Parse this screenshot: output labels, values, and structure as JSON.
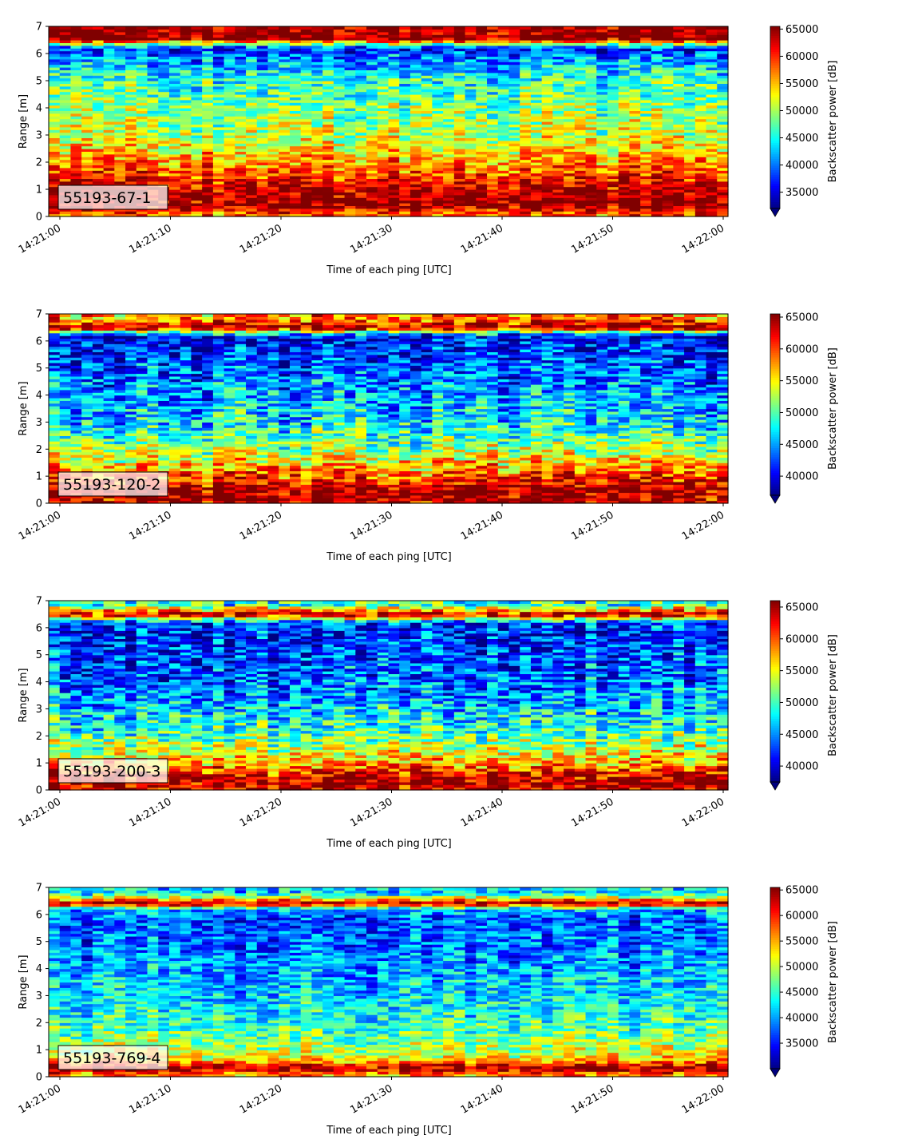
{
  "chart_data": [
    {
      "type": "heatmap",
      "panel_label": "55193-67-1",
      "xlabel": "Time of each ping [UTC]",
      "ylabel": "Range [m]",
      "xticks": [
        "14:21:00",
        "14:21:10",
        "14:21:20",
        "14:21:30",
        "14:21:40",
        "14:21:50",
        "14:22:00"
      ],
      "yticks": [
        0,
        1,
        2,
        3,
        4,
        5,
        6,
        7
      ],
      "ylim": [
        0,
        7
      ],
      "x_range": [
        "14:21:00",
        "14:22:00"
      ],
      "colorbar": {
        "label": "Backscatter power [dB]",
        "ticks": [
          35000,
          40000,
          45000,
          50000,
          55000,
          60000,
          65000
        ],
        "range": [
          32000,
          65500
        ],
        "extend": "min",
        "colormap": "jet"
      },
      "range_profile": [
        {
          "range": 0.1,
          "value": 58000
        },
        {
          "range": 0.4,
          "value": 65000
        },
        {
          "range": 1.0,
          "value": 64000
        },
        {
          "range": 1.6,
          "value": 59000
        },
        {
          "range": 2.2,
          "value": 55000
        },
        {
          "range": 3.0,
          "value": 51000
        },
        {
          "range": 4.0,
          "value": 49000
        },
        {
          "range": 5.0,
          "value": 46000
        },
        {
          "range": 5.8,
          "value": 41000
        },
        {
          "range": 6.2,
          "value": 37000
        },
        {
          "range": 6.55,
          "value": 65000
        },
        {
          "range": 7.0,
          "value": 65000
        }
      ]
    },
    {
      "type": "heatmap",
      "panel_label": "55193-120-2",
      "xlabel": "Time of each ping [UTC]",
      "ylabel": "Range [m]",
      "xticks": [
        "14:21:00",
        "14:21:10",
        "14:21:20",
        "14:21:30",
        "14:21:40",
        "14:21:50",
        "14:22:00"
      ],
      "yticks": [
        0,
        1,
        2,
        3,
        4,
        5,
        6,
        7
      ],
      "ylim": [
        0,
        7
      ],
      "x_range": [
        "14:21:00",
        "14:22:00"
      ],
      "colorbar": {
        "label": "Backscatter power [dB]",
        "ticks": [
          40000,
          45000,
          50000,
          55000,
          60000,
          65000
        ],
        "range": [
          37000,
          65500
        ],
        "extend": "min",
        "colormap": "jet"
      },
      "range_profile": [
        {
          "range": 0.1,
          "value": 64000
        },
        {
          "range": 0.5,
          "value": 65000
        },
        {
          "range": 1.0,
          "value": 60000
        },
        {
          "range": 1.6,
          "value": 55000
        },
        {
          "range": 2.2,
          "value": 51000
        },
        {
          "range": 3.0,
          "value": 47000
        },
        {
          "range": 4.0,
          "value": 45000
        },
        {
          "range": 5.0,
          "value": 43000
        },
        {
          "range": 5.8,
          "value": 41000
        },
        {
          "range": 6.2,
          "value": 40000
        },
        {
          "range": 6.5,
          "value": 65000
        },
        {
          "range": 6.85,
          "value": 58000
        }
      ]
    },
    {
      "type": "heatmap",
      "panel_label": "55193-200-3",
      "xlabel": "Time of each ping [UTC]",
      "ylabel": "Range [m]",
      "xticks": [
        "14:21:00",
        "14:21:10",
        "14:21:20",
        "14:21:30",
        "14:21:40",
        "14:21:50",
        "14:22:00"
      ],
      "yticks": [
        0,
        1,
        2,
        3,
        4,
        5,
        6,
        7
      ],
      "ylim": [
        0,
        7
      ],
      "x_range": [
        "14:21:00",
        "14:22:00"
      ],
      "colorbar": {
        "label": "Backscatter power [dB]",
        "ticks": [
          40000,
          45000,
          50000,
          55000,
          60000,
          65000
        ],
        "range": [
          37500,
          66000
        ],
        "extend": "min",
        "colormap": "jet"
      },
      "range_profile": [
        {
          "range": 0.1,
          "value": 64000
        },
        {
          "range": 0.4,
          "value": 65000
        },
        {
          "range": 0.9,
          "value": 59000
        },
        {
          "range": 1.5,
          "value": 54000
        },
        {
          "range": 2.2,
          "value": 50000
        },
        {
          "range": 3.0,
          "value": 47000
        },
        {
          "range": 4.0,
          "value": 44000
        },
        {
          "range": 5.0,
          "value": 43000
        },
        {
          "range": 5.8,
          "value": 42000
        },
        {
          "range": 6.2,
          "value": 43000
        },
        {
          "range": 6.5,
          "value": 65000
        },
        {
          "range": 6.85,
          "value": 50000
        }
      ]
    },
    {
      "type": "heatmap",
      "panel_label": "55193-769-4",
      "xlabel": "Time of each ping [UTC]",
      "ylabel": "Range [m]",
      "xticks": [
        "14:21:00",
        "14:21:10",
        "14:21:20",
        "14:21:30",
        "14:21:40",
        "14:21:50",
        "14:22:00"
      ],
      "yticks": [
        0,
        1,
        2,
        3,
        4,
        5,
        6,
        7
      ],
      "ylim": [
        0,
        7
      ],
      "x_range": [
        "14:21:00",
        "14:22:00"
      ],
      "colorbar": {
        "label": "Backscatter power [dB]",
        "ticks": [
          35000,
          40000,
          45000,
          50000,
          55000,
          60000,
          65000
        ],
        "range": [
          30000,
          65500
        ],
        "extend": "min",
        "colormap": "jet"
      },
      "range_profile": [
        {
          "range": 0.1,
          "value": 56000
        },
        {
          "range": 0.3,
          "value": 65000
        },
        {
          "range": 0.7,
          "value": 52000
        },
        {
          "range": 1.3,
          "value": 48000
        },
        {
          "range": 2.0,
          "value": 45000
        },
        {
          "range": 3.0,
          "value": 42000
        },
        {
          "range": 4.0,
          "value": 40000
        },
        {
          "range": 5.0,
          "value": 38000
        },
        {
          "range": 5.8,
          "value": 37000
        },
        {
          "range": 6.2,
          "value": 40000
        },
        {
          "range": 6.4,
          "value": 65000
        },
        {
          "range": 6.8,
          "value": 42000
        }
      ]
    }
  ]
}
